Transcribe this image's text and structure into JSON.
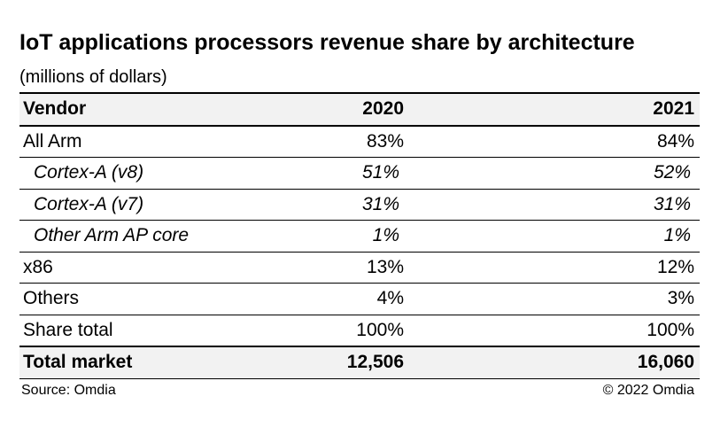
{
  "title": "IoT applications processors revenue share by architecture",
  "subtitle": "(millions of dollars)",
  "table": {
    "header": [
      "Vendor",
      "2020",
      "2021"
    ],
    "rows": [
      [
        "All Arm",
        "83%",
        "84%"
      ],
      [
        "Cortex-A (v8)",
        "51%",
        "52%"
      ],
      [
        "Cortex-A (v7)",
        "31%",
        "31%"
      ],
      [
        "Other Arm AP core",
        "1%",
        "1%"
      ],
      [
        "x86",
        "13%",
        "12%"
      ],
      [
        "Others",
        "4%",
        "3%"
      ],
      [
        "Share total",
        "100%",
        "100%"
      ],
      [
        "Total market",
        "12,506",
        "16,060"
      ]
    ]
  },
  "footer": {
    "source": "Source: Omdia",
    "copyright": "© 2022 Omdia"
  }
}
